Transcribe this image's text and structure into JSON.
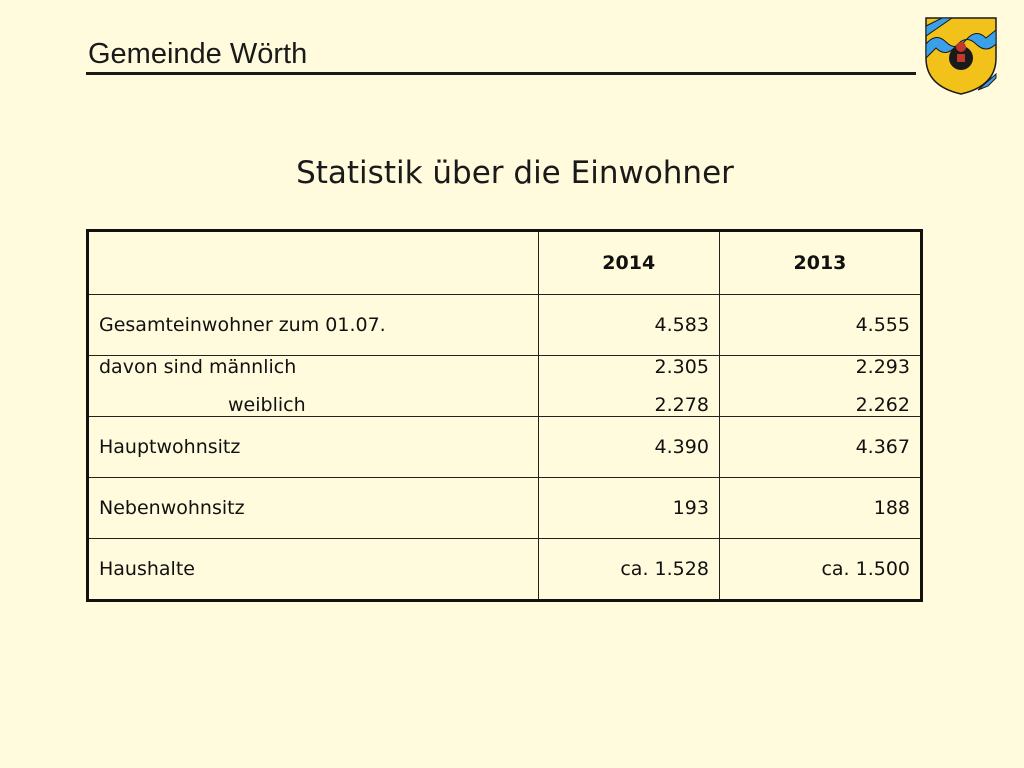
{
  "header": {
    "title": "Gemeinde Wörth"
  },
  "crest": {
    "icon": "coat-of-arms-icon",
    "colors": {
      "field": "#F2C21A",
      "band": "#3AA0E8",
      "outline": "#1a1a1a"
    }
  },
  "slide": {
    "title": "Statistik über die Einwohner"
  },
  "table": {
    "columns": [
      "",
      "2014",
      "2013"
    ],
    "rows": [
      {
        "label": "Gesamteinwohner zum 01.07.",
        "v2014": "4.583",
        "v2013": "4.555"
      },
      {
        "label": "davon sind männlich",
        "label2": "weiblich",
        "v2014": "2.305",
        "v2014b": "2.278",
        "v2013": "2.293",
        "v2013b": "2.262"
      },
      {
        "label": "Hauptwohnsitz",
        "v2014": "4.390",
        "v2013": "4.367"
      },
      {
        "label": "Nebenwohnsitz",
        "v2014": "193",
        "v2013": "188"
      },
      {
        "label": "Haushalte",
        "v2014": "ca. 1.528",
        "v2013": "ca. 1.500"
      }
    ]
  }
}
